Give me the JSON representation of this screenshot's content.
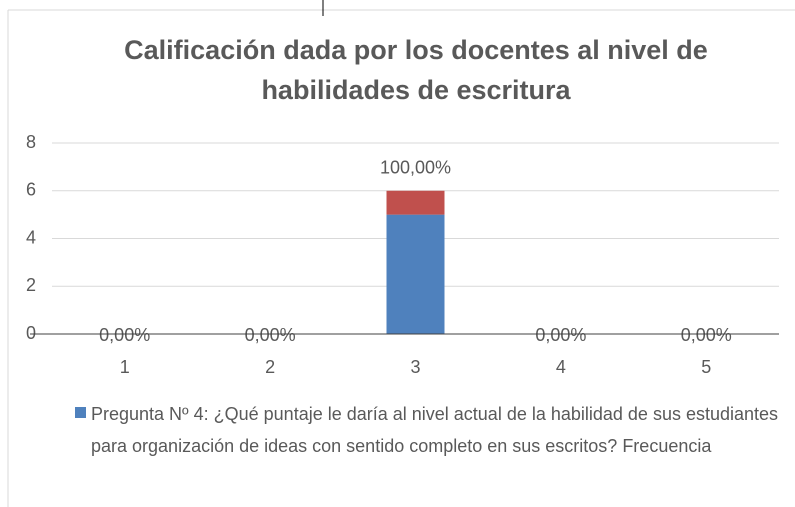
{
  "chart_data": {
    "type": "stacked_bar",
    "title": "Calificación dada por los docentes al nivel de habilidades de escritura",
    "categories": [
      "1",
      "2",
      "3",
      "4",
      "5"
    ],
    "series": [
      {
        "name": "Pregunta Nº 4: ¿Qué puntaje le daría al nivel actual de la habilidad de sus estudiantes para organización de ideas con sentido completo en sus escritos? Frecuencia",
        "color": "#4f81bd",
        "values": [
          0,
          0,
          5,
          0,
          0
        ]
      },
      {
        "color": "#c0504d",
        "values": [
          0,
          0,
          1,
          0,
          0
        ]
      }
    ],
    "annotations": [
      "0,00%",
      "0,00%",
      "100,00%",
      "0,00%",
      "0,00%"
    ],
    "ylim": [
      0,
      8
    ],
    "yticks": [
      0,
      2,
      4,
      6,
      8
    ],
    "grid": true,
    "legend": "bottom"
  }
}
